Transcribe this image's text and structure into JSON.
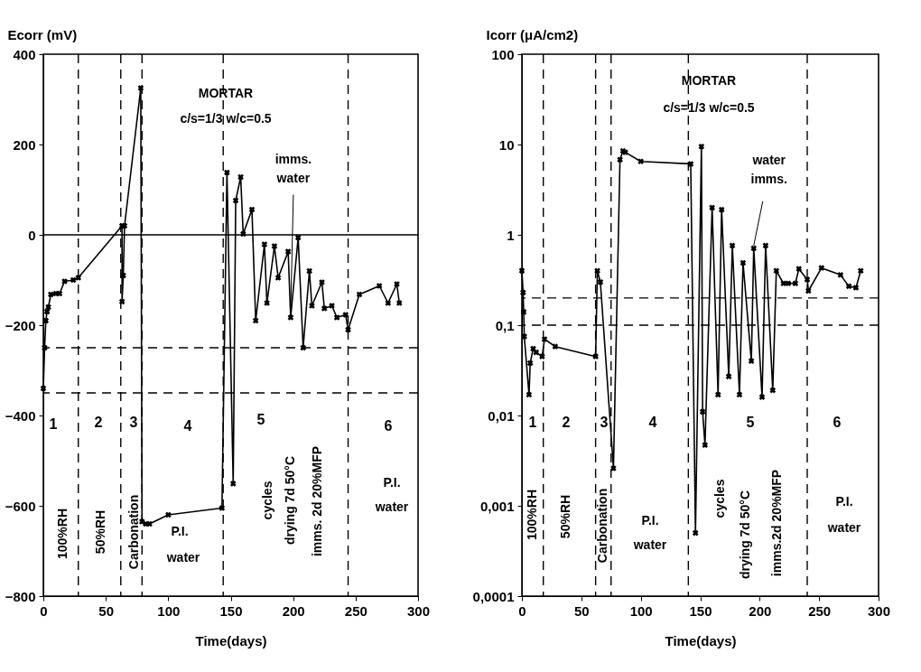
{
  "chart_data": [
    {
      "type": "line",
      "ylabel": "Ecorr (mV)",
      "xlabel": "Time(days)",
      "xlim": [
        0,
        300
      ],
      "xticks": [
        0,
        50,
        100,
        150,
        200,
        250,
        300
      ],
      "ylim": [
        -800,
        400
      ],
      "yticks": [
        -800,
        -600,
        -400,
        -200,
        0,
        200,
        400
      ],
      "grid": false,
      "marker": "cross",
      "line_style": "solid",
      "series": [
        {
          "color": "#000000",
          "x": [
            0,
            1,
            2,
            3,
            4,
            6,
            10,
            13,
            17,
            24,
            28,
            63,
            63,
            64,
            65,
            78,
            79,
            82,
            85,
            100,
            143,
            147,
            152,
            154,
            158,
            160,
            167,
            170,
            177,
            179,
            185,
            188,
            196,
            198,
            204,
            208,
            213,
            215,
            223,
            225,
            231,
            235,
            242,
            244,
            253,
            269,
            276,
            283,
            285
          ],
          "values": [
            -340,
            -250,
            -190,
            -170,
            -160,
            -132,
            -130,
            -130,
            -103,
            -100,
            -95,
            20,
            -148,
            -90,
            20,
            325,
            -635,
            -640,
            -640,
            -620,
            -605,
            138,
            -551,
            76,
            128,
            2,
            56,
            -190,
            -21,
            -151,
            -25,
            -95,
            -37,
            -183,
            -6,
            -250,
            -80,
            -157,
            -105,
            -163,
            -157,
            -183,
            -177,
            -210,
            -132,
            -113,
            -151,
            -109,
            -151
          ]
        }
      ],
      "ref_lines": [
        {
          "axis": "y",
          "value": 0,
          "line_style": "solid"
        },
        {
          "axis": "y",
          "value": -250,
          "line_style": "dashed"
        },
        {
          "axis": "y",
          "value": -350,
          "line_style": "dashed"
        },
        {
          "axis": "x",
          "value": 28,
          "line_style": "dashed"
        },
        {
          "axis": "x",
          "value": 62,
          "line_style": "dashed"
        },
        {
          "axis": "x",
          "value": 79,
          "line_style": "dashed"
        },
        {
          "axis": "x",
          "value": 144,
          "line_style": "dashed"
        },
        {
          "axis": "x",
          "value": 244,
          "line_style": "dashed"
        }
      ],
      "annotations": [
        "MORTAR",
        "c/s=1/3 w/c=0.5",
        {
          "text": "imms. water",
          "x": 198,
          "y": -183
        },
        "1",
        "2",
        "3",
        "4",
        "5",
        "6",
        "100%RH",
        "50%RH",
        "Carbonation",
        "P.I.",
        "water",
        "cycles",
        "drying 7d 50°C",
        "imms. 2d 20%MFP",
        "P.I.",
        "water"
      ]
    },
    {
      "type": "line",
      "ylabel": "Icorr (μA/cm2)",
      "xlabel": "Time(days)",
      "log": "y",
      "xlim": [
        0,
        300
      ],
      "xticks": [
        0,
        50,
        100,
        150,
        200,
        250,
        300
      ],
      "ylim": [
        0.0001,
        100
      ],
      "yticks": [
        {
          "value": 0.0001,
          "label": "0,0001"
        },
        {
          "value": 0.001,
          "label": "0,001"
        },
        {
          "value": 0.01,
          "label": "0,01"
        },
        {
          "value": 0.1,
          "label": "0,1"
        },
        1,
        10,
        100
      ],
      "grid": false,
      "marker": "cross",
      "line_style": "solid",
      "series": [
        {
          "color": "#000000",
          "x": [
            0,
            1,
            1.5,
            2,
            6,
            7,
            9.5,
            12,
            17,
            19,
            28,
            62,
            63.5,
            66,
            77,
            82.5,
            85,
            87,
            100,
            142,
            146,
            151,
            152,
            154,
            160,
            165,
            168,
            174,
            177,
            183,
            186,
            193,
            195,
            202,
            205,
            211,
            214,
            220,
            224,
            230,
            233,
            240,
            241,
            252,
            268,
            275,
            281,
            285
          ],
          "values": [
            0.4,
            0.23,
            0.14,
            0.075,
            0.017,
            0.038,
            0.055,
            0.05,
            0.045,
            0.07,
            0.058,
            0.045,
            0.4,
            0.3,
            0.0026,
            6.8,
            8.5,
            8.2,
            6.5,
            6.1,
            0.0005,
            9.5,
            0.011,
            0.0047,
            2.0,
            0.017,
            1.9,
            0.027,
            0.76,
            0.017,
            0.49,
            0.04,
            0.71,
            0.016,
            0.76,
            0.019,
            0.4,
            0.29,
            0.29,
            0.29,
            0.42,
            0.32,
            0.24,
            0.43,
            0.36,
            0.27,
            0.26,
            0.4
          ]
        }
      ],
      "ref_lines": [
        {
          "axis": "y",
          "value": 0.2,
          "line_style": "dashed"
        },
        {
          "axis": "y",
          "value": 0.1,
          "line_style": "dashed"
        },
        {
          "axis": "x",
          "value": 18,
          "line_style": "dashed"
        },
        {
          "axis": "x",
          "value": 62,
          "line_style": "dashed"
        },
        {
          "axis": "x",
          "value": 75,
          "line_style": "dashed"
        },
        {
          "axis": "x",
          "value": 140,
          "line_style": "dashed"
        },
        {
          "axis": "x",
          "value": 240,
          "line_style": "dashed"
        }
      ],
      "annotations": [
        "MORTAR",
        "c/s=1/3 w/c=0.5",
        {
          "text": "water imms.",
          "x": 195,
          "y": 0.71
        },
        "1",
        "2",
        "3",
        "4",
        "5",
        "6",
        "100%RH",
        "50%RH",
        "Carbonation",
        "P.I.",
        "water",
        "cycles",
        "drying 7d 50°C",
        "imms.2d 20%MFP",
        "P.I.",
        "water"
      ]
    }
  ]
}
